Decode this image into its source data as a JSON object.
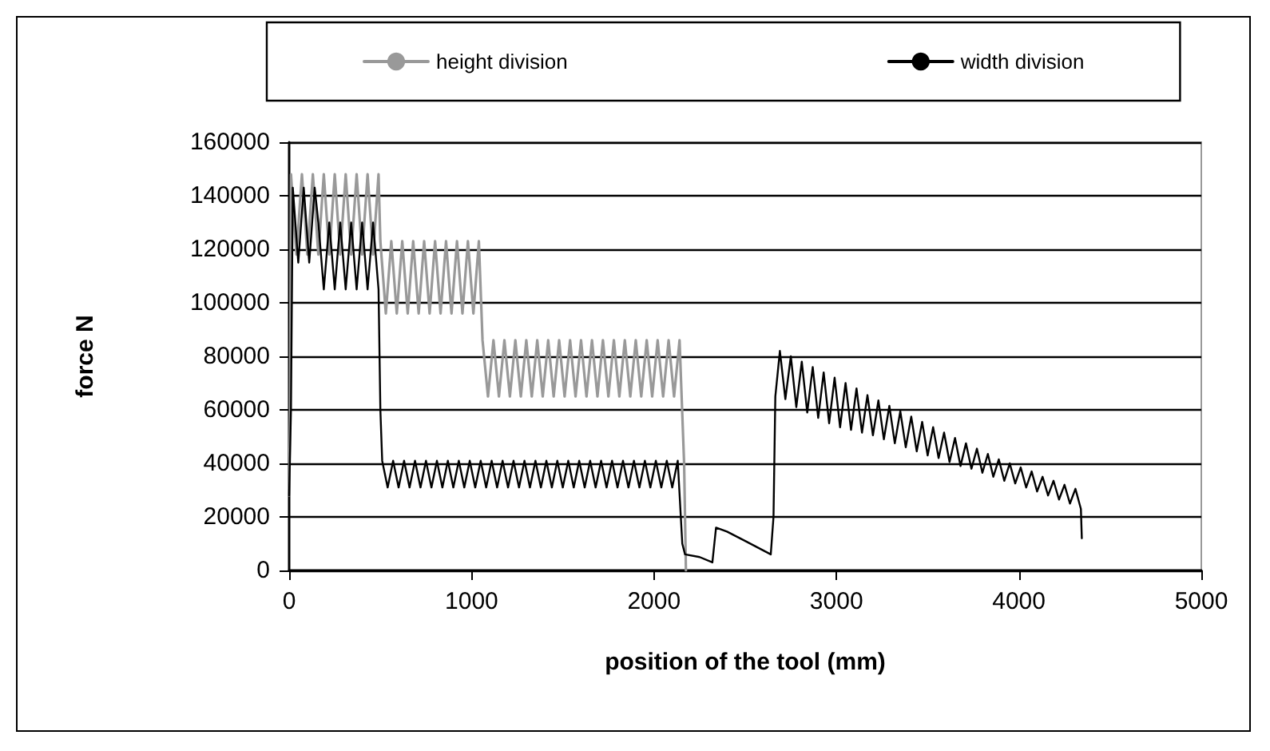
{
  "chart_data": {
    "type": "line",
    "xlabel": "position of the tool (mm)",
    "ylabel": "force N",
    "xlim": [
      0,
      5000
    ],
    "xticks": [
      0,
      1000,
      2000,
      3000,
      4000,
      5000
    ],
    "ylim": [
      0,
      160000
    ],
    "yticks": [
      0,
      20000,
      40000,
      60000,
      80000,
      100000,
      120000,
      140000,
      160000
    ],
    "grid": "y",
    "legend": "top",
    "marker": "none",
    "line_style": "solid",
    "series": [
      {
        "name": "height division",
        "color": "#999999",
        "x": [
          0,
          5,
          10,
          40,
          70,
          100,
          130,
          160,
          190,
          220,
          250,
          280,
          310,
          340,
          370,
          400,
          430,
          460,
          490,
          500,
          530,
          560,
          590,
          620,
          650,
          680,
          710,
          740,
          770,
          800,
          830,
          860,
          890,
          920,
          950,
          980,
          1010,
          1040,
          1060,
          1090,
          1120,
          1150,
          1180,
          1210,
          1240,
          1270,
          1300,
          1330,
          1360,
          1390,
          1420,
          1450,
          1480,
          1510,
          1540,
          1570,
          1600,
          1630,
          1660,
          1690,
          1720,
          1750,
          1780,
          1810,
          1840,
          1870,
          1900,
          1930,
          1960,
          1990,
          2020,
          2050,
          2080,
          2110,
          2140,
          2165,
          2175
        ],
        "values": [
          28000,
          60000,
          148000,
          118000,
          148000,
          118000,
          148000,
          118000,
          148000,
          118000,
          148000,
          118000,
          148000,
          118000,
          148000,
          118000,
          148000,
          118000,
          148000,
          123000,
          96000,
          123000,
          96000,
          123000,
          96000,
          123000,
          96000,
          123000,
          96000,
          123000,
          96000,
          123000,
          96000,
          123000,
          96000,
          123000,
          96000,
          123000,
          86000,
          65000,
          86000,
          65000,
          86000,
          65000,
          86000,
          65000,
          86000,
          65000,
          86000,
          65000,
          86000,
          65000,
          86000,
          65000,
          86000,
          65000,
          86000,
          65000,
          86000,
          65000,
          86000,
          65000,
          86000,
          65000,
          86000,
          65000,
          86000,
          65000,
          86000,
          65000,
          86000,
          65000,
          86000,
          65000,
          86000,
          40000,
          0
        ]
      },
      {
        "name": "width division",
        "color": "#000000",
        "x": [
          0,
          10,
          20,
          50,
          80,
          110,
          140,
          160,
          190,
          220,
          250,
          280,
          310,
          340,
          370,
          400,
          430,
          460,
          490,
          500,
          510,
          540,
          570,
          600,
          630,
          660,
          690,
          720,
          750,
          780,
          810,
          840,
          870,
          900,
          930,
          960,
          990,
          1020,
          1050,
          1080,
          1110,
          1140,
          1170,
          1200,
          1230,
          1260,
          1290,
          1320,
          1350,
          1380,
          1410,
          1440,
          1470,
          1500,
          1530,
          1560,
          1590,
          1620,
          1650,
          1680,
          1710,
          1740,
          1770,
          1800,
          1830,
          1860,
          1890,
          1920,
          1950,
          1980,
          2010,
          2040,
          2070,
          2100,
          2130,
          2155,
          2170,
          2250,
          2320,
          2340,
          2400,
          2500,
          2640,
          2655,
          2665,
          2690,
          2720,
          2750,
          2780,
          2810,
          2840,
          2870,
          2900,
          2930,
          2960,
          2990,
          3020,
          3050,
          3080,
          3110,
          3140,
          3170,
          3200,
          3230,
          3260,
          3290,
          3320,
          3350,
          3380,
          3410,
          3440,
          3470,
          3500,
          3530,
          3560,
          3590,
          3620,
          3650,
          3680,
          3710,
          3740,
          3770,
          3800,
          3830,
          3860,
          3890,
          3920,
          3950,
          3980,
          4010,
          4040,
          4070,
          4100,
          4130,
          4160,
          4190,
          4220,
          4250,
          4280,
          4310,
          4340,
          4345
        ],
        "values": [
          28000,
          60000,
          143000,
          115000,
          143000,
          115000,
          143000,
          130000,
          105000,
          130000,
          105000,
          130000,
          105000,
          130000,
          105000,
          130000,
          105000,
          130000,
          105000,
          60000,
          41000,
          31000,
          41000,
          31000,
          41000,
          31000,
          41000,
          31000,
          41000,
          31000,
          41000,
          31000,
          41000,
          31000,
          41000,
          31000,
          41000,
          31000,
          41000,
          31000,
          41000,
          31000,
          41000,
          31000,
          41000,
          31000,
          41000,
          31000,
          41000,
          31000,
          41000,
          31000,
          41000,
          31000,
          41000,
          31000,
          41000,
          31000,
          41000,
          31000,
          41000,
          31000,
          41000,
          31000,
          41000,
          31000,
          41000,
          31000,
          41000,
          31000,
          41000,
          31000,
          41000,
          31000,
          41000,
          10000,
          6000,
          5000,
          3000,
          16000,
          14500,
          11000,
          6000,
          20000,
          65000,
          82000,
          64000,
          80000,
          61000,
          78000,
          59000,
          76000,
          57000,
          74000,
          55000,
          72000,
          53500,
          70000,
          52500,
          68000,
          51500,
          65500,
          50500,
          63500,
          49000,
          61500,
          47500,
          59500,
          46000,
          57500,
          44500,
          55500,
          43000,
          53500,
          42000,
          51500,
          40500,
          49500,
          39000,
          47500,
          38000,
          45500,
          36500,
          43500,
          35000,
          41500,
          33500,
          40000,
          32500,
          38500,
          31000,
          37000,
          29500,
          35000,
          28000,
          33500,
          26500,
          32000,
          25000,
          30500,
          23000,
          12000
        ]
      }
    ]
  }
}
